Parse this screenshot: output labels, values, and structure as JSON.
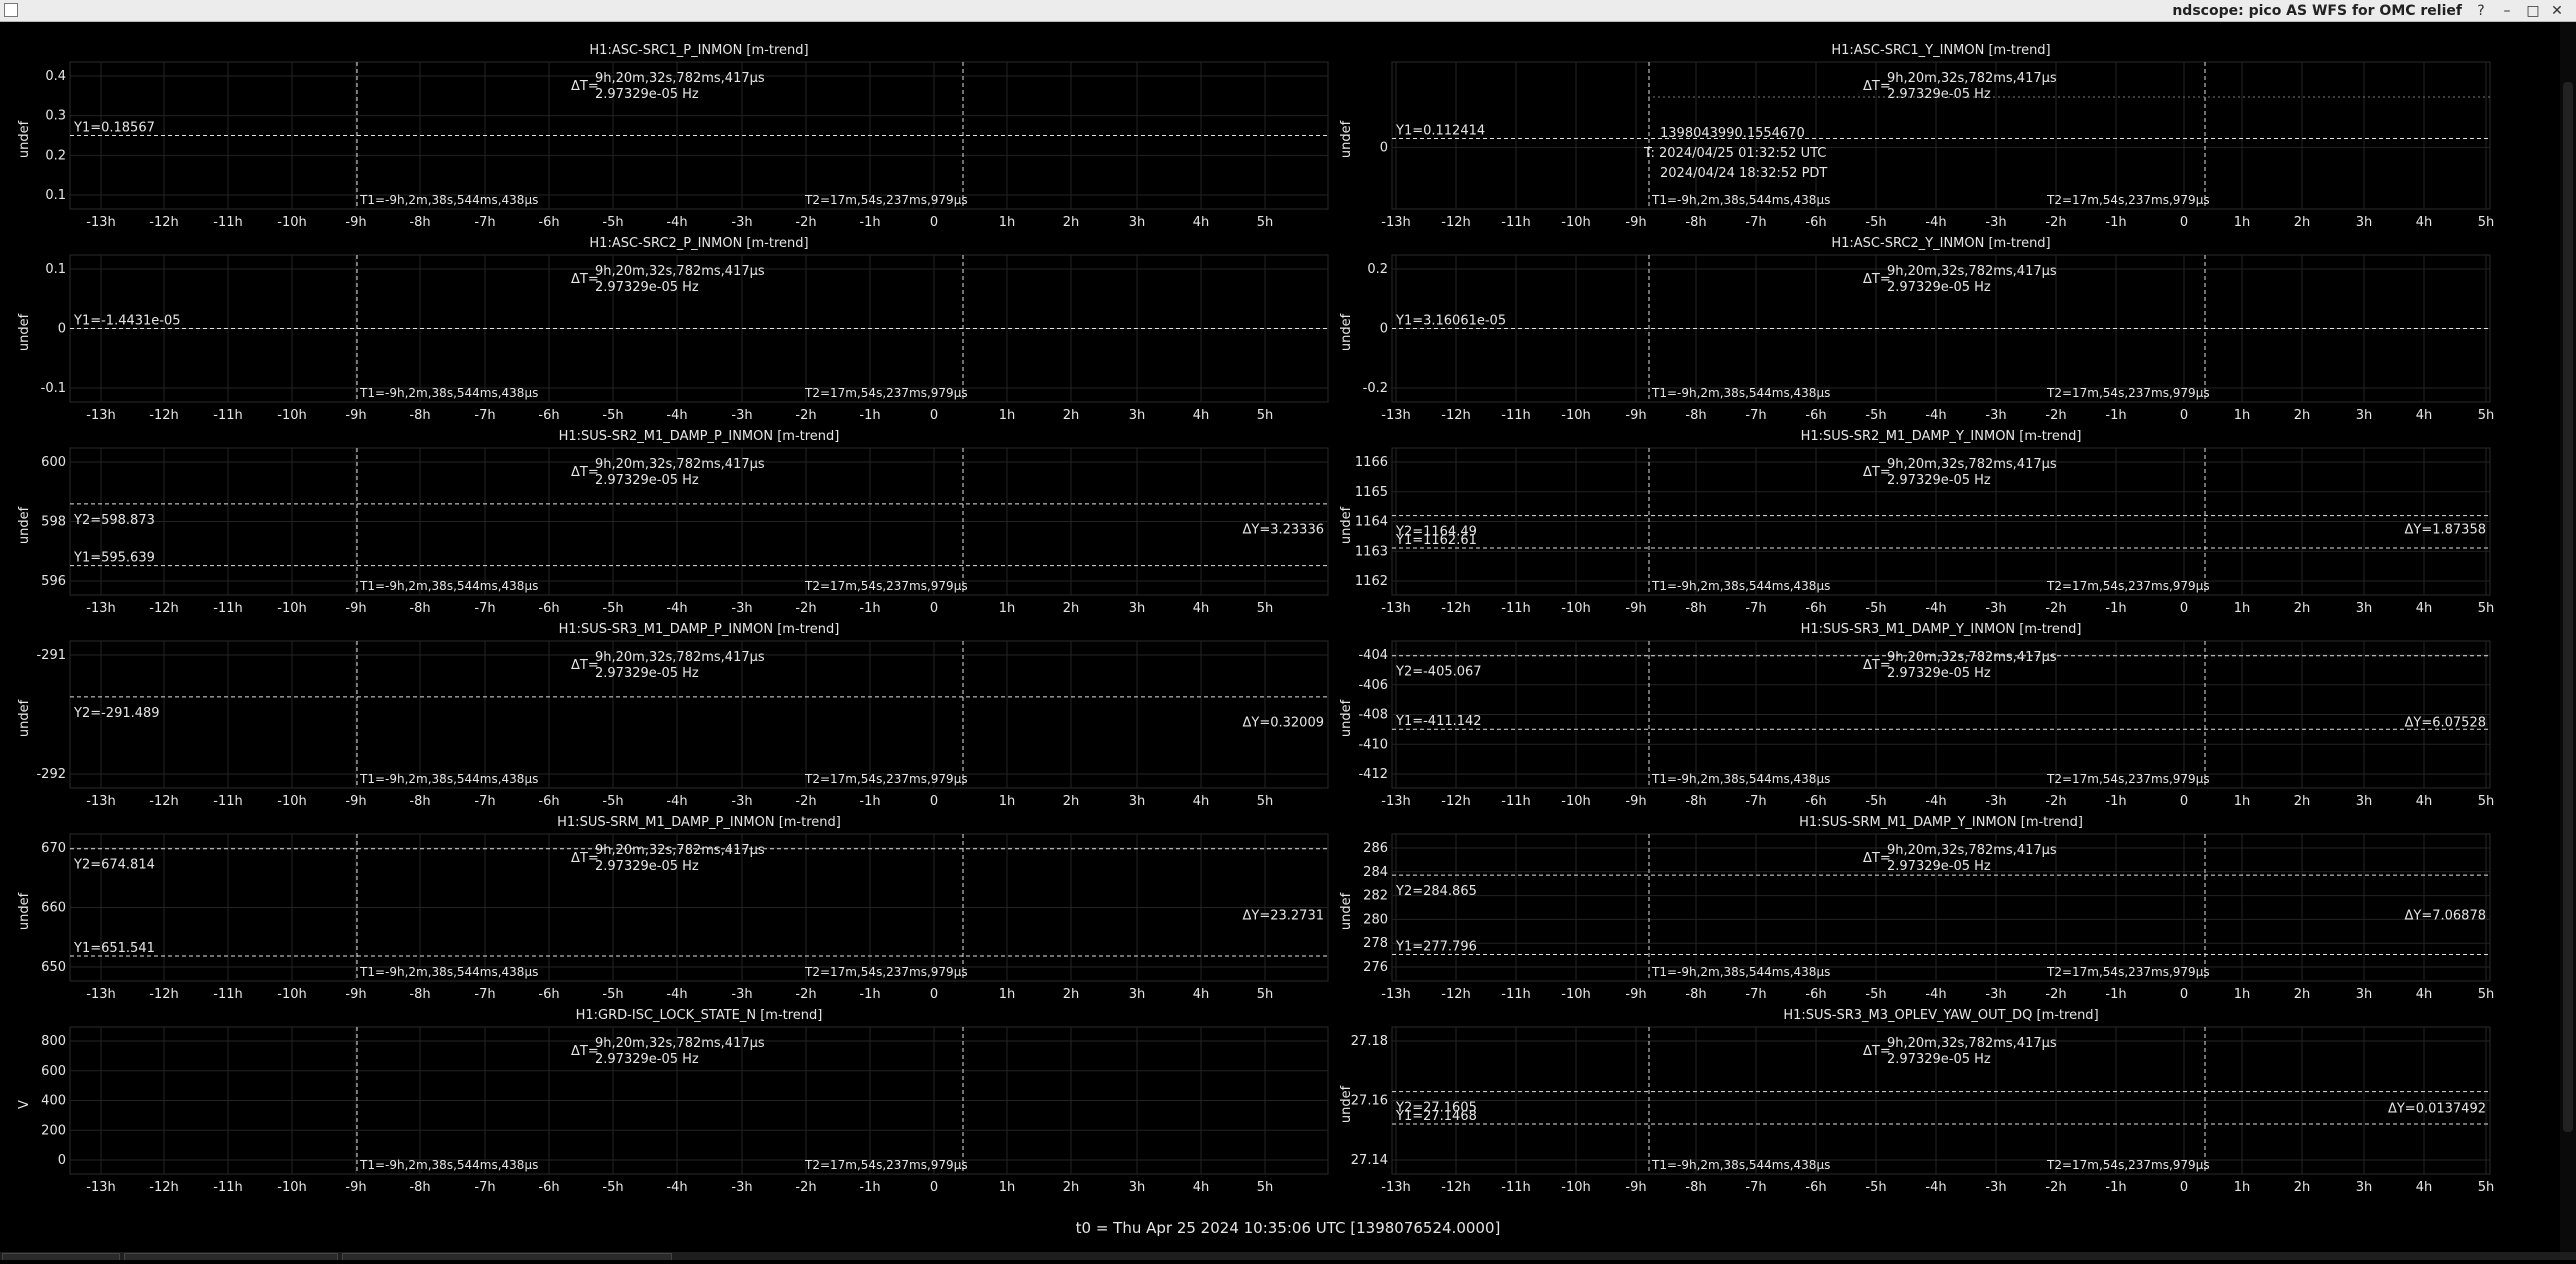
{
  "window": {
    "title": "ndscope: pico AS WFS for OMC relief",
    "buttons": {
      "help": "?",
      "minimize": "–",
      "maximize": "□",
      "close": "✕"
    },
    "icon": "window-app-icon"
  },
  "time_axis": {
    "ticks": [
      "-13h",
      "-12h",
      "-11h",
      "-10h",
      "-9h",
      "-8h",
      "-7h",
      "-6h",
      "-5h",
      "-4h",
      "-3h",
      "-2h",
      "-1h",
      "0",
      "1h",
      "2h",
      "3h",
      "4h",
      "5h"
    ],
    "t0_label": "t0 = Thu Apr 25 2024 10:35:06 UTC [1398076524.0000]"
  },
  "cursors": {
    "delta_t": "ΔT=",
    "delta_t_value": "9h,20m,32s,782ms,417µs",
    "delta_t_freq": "2.97329e-05 Hz",
    "t1_label": "T1=-9h,2m,38s,544ms,438µs",
    "t2_label": "T2=17m,54s,237ms,979µs"
  },
  "crosshair": {
    "gps": "1398043990.1554670",
    "utc": "T: 2024/04/25 01:32:52 UTC",
    "pdt": "2024/04/24 18:32:52 PDT"
  },
  "colors": {
    "background": "#000000",
    "grid": "#232323",
    "cursor": "#e0e0e0",
    "red": "#e0423a",
    "green": "#68c22a",
    "lavender": "#c9b0d6",
    "mauve": "#a078a8",
    "magenta": "#e33bd2",
    "blue": "#3d3fd0",
    "teal": "#2ea69a",
    "slate": "#7c86c8",
    "cyan": "#1fb8b8",
    "orange": "#e08a18",
    "pink": "#ee3ab6"
  },
  "plots": [
    {
      "id": "src1-p",
      "title": "H1:ASC-SRC1_P_INMON [m-trend]",
      "ylabel": "undef",
      "yticks": [
        "0.4",
        "0.3",
        "0.2",
        "0.1"
      ],
      "y1": "Y1=0.18567",
      "y2": "",
      "dy": "",
      "color": "red",
      "icon": "line-trace"
    },
    {
      "id": "src1-y",
      "title": "H1:ASC-SRC1_Y_INMON [m-trend]",
      "ylabel": "undef",
      "yticks": [
        "0"
      ],
      "y1": "Y1=0.112414",
      "y2": "",
      "dy": "",
      "color": "green",
      "icon": "line-trace"
    },
    {
      "id": "src2-p",
      "title": "H1:ASC-SRC2_P_INMON [m-trend]",
      "ylabel": "undef",
      "yticks": [
        "0.1",
        "0",
        "-0.1"
      ],
      "y1": "Y1=-1.4431e-05",
      "y2": "",
      "dy": "",
      "color": "green",
      "icon": "line-trace"
    },
    {
      "id": "src2-y",
      "title": "H1:ASC-SRC2_Y_INMON [m-trend]",
      "ylabel": "undef",
      "yticks": [
        "0.2",
        "0",
        "-0.2"
      ],
      "y1": "Y1=3.16061e-05",
      "y2": "",
      "dy": "",
      "color": "lavender",
      "icon": "line-trace"
    },
    {
      "id": "sr2-p",
      "title": "H1:SUS-SR2_M1_DAMP_P_INMON [m-trend]",
      "ylabel": "undef",
      "yticks": [
        "600",
        "598",
        "596"
      ],
      "y1": "Y1=595.639",
      "y2": "Y2=598.873",
      "dy": "ΔY=3.23336",
      "color": "mauve",
      "icon": "line-trace"
    },
    {
      "id": "sr2-y",
      "title": "H1:SUS-SR2_M1_DAMP_Y_INMON [m-trend]",
      "ylabel": "undef",
      "yticks": [
        "1166",
        "1165",
        "1164",
        "1163",
        "1162"
      ],
      "y1": "Y1=1162.61",
      "y2": "Y2=1164.49",
      "dy": "ΔY=1.87358",
      "color": "magenta",
      "icon": "line-trace"
    },
    {
      "id": "sr3-p",
      "title": "H1:SUS-SR3_M1_DAMP_P_INMON [m-trend]",
      "ylabel": "undef",
      "yticks": [
        "-291",
        "-292"
      ],
      "y1": "",
      "y2": "Y2=-291.489",
      "dy": "ΔY=0.32009",
      "color": "blue",
      "icon": "line-trace"
    },
    {
      "id": "sr3-y",
      "title": "H1:SUS-SR3_M1_DAMP_Y_INMON [m-trend]",
      "ylabel": "undef",
      "yticks": [
        "-404",
        "-406",
        "-408",
        "-410",
        "-412"
      ],
      "y1": "Y1=-411.142",
      "y2": "Y2=-405.067",
      "dy": "ΔY=6.07528",
      "color": "teal",
      "icon": "line-trace"
    },
    {
      "id": "srm-p",
      "title": "H1:SUS-SRM_M1_DAMP_P_INMON [m-trend]",
      "ylabel": "undef",
      "yticks": [
        "670",
        "660",
        "650"
      ],
      "y1": "Y1=651.541",
      "y2": "Y2=674.814",
      "dy": "ΔY=23.2731",
      "color": "slate",
      "icon": "line-trace"
    },
    {
      "id": "srm-y",
      "title": "H1:SUS-SRM_M1_DAMP_Y_INMON [m-trend]",
      "ylabel": "undef",
      "yticks": [
        "286",
        "284",
        "282",
        "280",
        "278",
        "276"
      ],
      "y1": "Y1=277.796",
      "y2": "Y2=284.865",
      "dy": "ΔY=7.06878",
      "color": "cyan",
      "icon": "line-trace"
    },
    {
      "id": "grd",
      "title": "H1:GRD-ISC_LOCK_STATE_N [m-trend]",
      "ylabel": "V",
      "yticks": [
        "800",
        "600",
        "400",
        "200",
        "0"
      ],
      "y1": "",
      "y2": "",
      "dy": "",
      "color": "orange",
      "icon": "line-trace"
    },
    {
      "id": "oplev",
      "title": "H1:SUS-SR3_M3_OPLEV_YAW_OUT_DQ [m-trend]",
      "ylabel": "undef",
      "yticks": [
        "27.18",
        "27.16",
        "27.14"
      ],
      "y1": "Y1=27.1468",
      "y2": "Y2=27.1605",
      "dy": "ΔY=0.0137492",
      "color": "pink",
      "icon": "line-trace"
    }
  ]
}
